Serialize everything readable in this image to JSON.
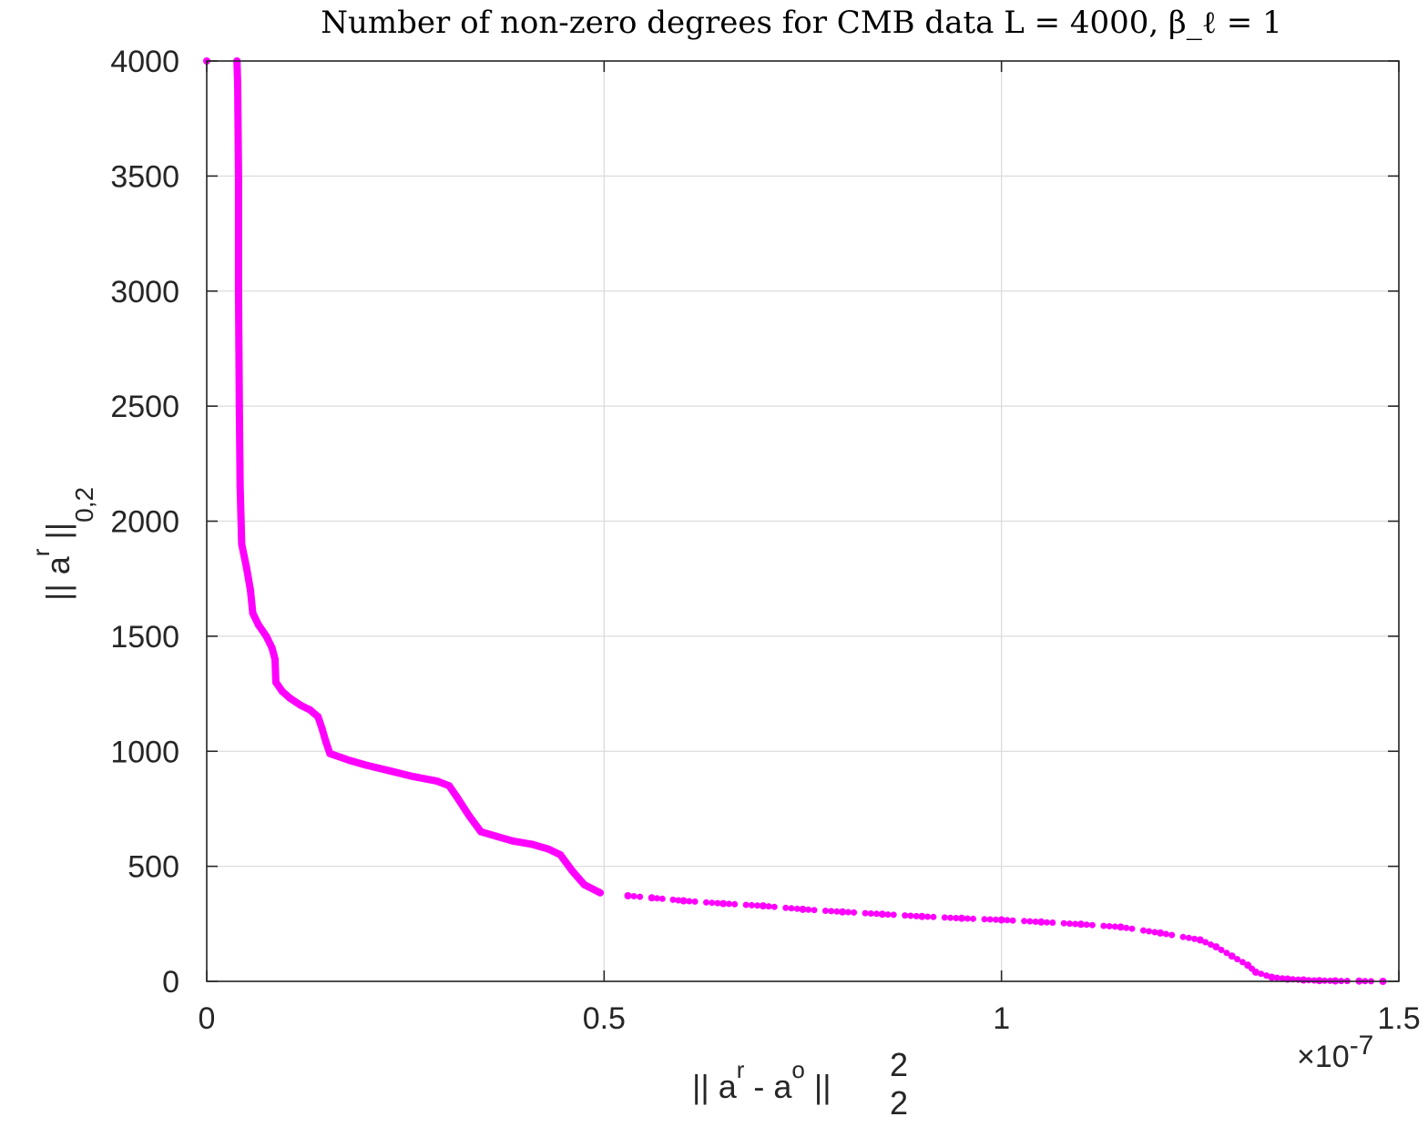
{
  "chart_data": {
    "type": "scatter",
    "title": "Number of non-zero degrees for CMB data L = 4000, β_ℓ = 1",
    "xlabel": {
      "main": "|| a",
      "sup_r": "r",
      "mid": " - a",
      "sup_o": "o",
      "end": " ||",
      "sub": "2",
      "sup": "2"
    },
    "ylabel": {
      "main": "|| a",
      "sup": "r",
      "end": " ||",
      "sub": "0,2"
    },
    "x_exponent": {
      "prefix": "×10",
      "power": "-7"
    },
    "xlim": [
      0,
      1.5
    ],
    "ylim": [
      0,
      4000
    ],
    "x_scale_note": "values in units of 1e-7",
    "x_ticks": [
      0,
      0.5,
      1,
      1.5
    ],
    "x_tick_labels": [
      "0",
      "0.5",
      "1",
      "1.5"
    ],
    "y_ticks": [
      0,
      500,
      1000,
      1500,
      2000,
      2500,
      3000,
      3500,
      4000
    ],
    "y_tick_labels": [
      "0",
      "500",
      "1000",
      "1500",
      "2000",
      "2500",
      "3000",
      "3500",
      "4000"
    ],
    "grid": true,
    "color": "#ff00ff",
    "series": [
      {
        "points": [
          [
            0.0,
            4000
          ],
          [
            0.038,
            4000
          ],
          [
            0.039,
            3900
          ],
          [
            0.04,
            3500
          ],
          [
            0.04,
            3000
          ],
          [
            0.041,
            2500
          ],
          [
            0.042,
            2150
          ],
          [
            0.044,
            1900
          ],
          [
            0.05,
            1800
          ],
          [
            0.055,
            1700
          ],
          [
            0.058,
            1600
          ],
          [
            0.065,
            1550
          ],
          [
            0.075,
            1500
          ],
          [
            0.082,
            1450
          ],
          [
            0.086,
            1400
          ],
          [
            0.087,
            1300
          ],
          [
            0.095,
            1260
          ],
          [
            0.105,
            1230
          ],
          [
            0.118,
            1200
          ],
          [
            0.13,
            1180
          ],
          [
            0.14,
            1150
          ],
          [
            0.145,
            1100
          ],
          [
            0.15,
            1040
          ],
          [
            0.155,
            990
          ],
          [
            0.18,
            960
          ],
          [
            0.2,
            940
          ],
          [
            0.23,
            915
          ],
          [
            0.26,
            890
          ],
          [
            0.29,
            870
          ],
          [
            0.305,
            850
          ],
          [
            0.315,
            800
          ],
          [
            0.33,
            720
          ],
          [
            0.345,
            650
          ],
          [
            0.365,
            630
          ],
          [
            0.385,
            610
          ],
          [
            0.41,
            595
          ],
          [
            0.43,
            575
          ],
          [
            0.445,
            550
          ],
          [
            0.46,
            480
          ],
          [
            0.475,
            420
          ],
          [
            0.495,
            385
          ],
          [
            0.53,
            372
          ],
          [
            0.56,
            363
          ],
          [
            0.6,
            350
          ],
          [
            0.65,
            338
          ],
          [
            0.7,
            328
          ],
          [
            0.75,
            313
          ],
          [
            0.8,
            302
          ],
          [
            0.85,
            292
          ],
          [
            0.9,
            282
          ],
          [
            0.95,
            274
          ],
          [
            1.0,
            267
          ],
          [
            1.05,
            258
          ],
          [
            1.1,
            248
          ],
          [
            1.15,
            236
          ],
          [
            1.2,
            210
          ],
          [
            1.25,
            180
          ],
          [
            1.27,
            150
          ],
          [
            1.29,
            110
          ],
          [
            1.31,
            70
          ],
          [
            1.32,
            40
          ],
          [
            1.34,
            18
          ],
          [
            1.36,
            10
          ],
          [
            1.38,
            6
          ],
          [
            1.4,
            3
          ],
          [
            1.42,
            2
          ],
          [
            1.45,
            1
          ],
          [
            1.48,
            0
          ]
        ]
      }
    ]
  }
}
